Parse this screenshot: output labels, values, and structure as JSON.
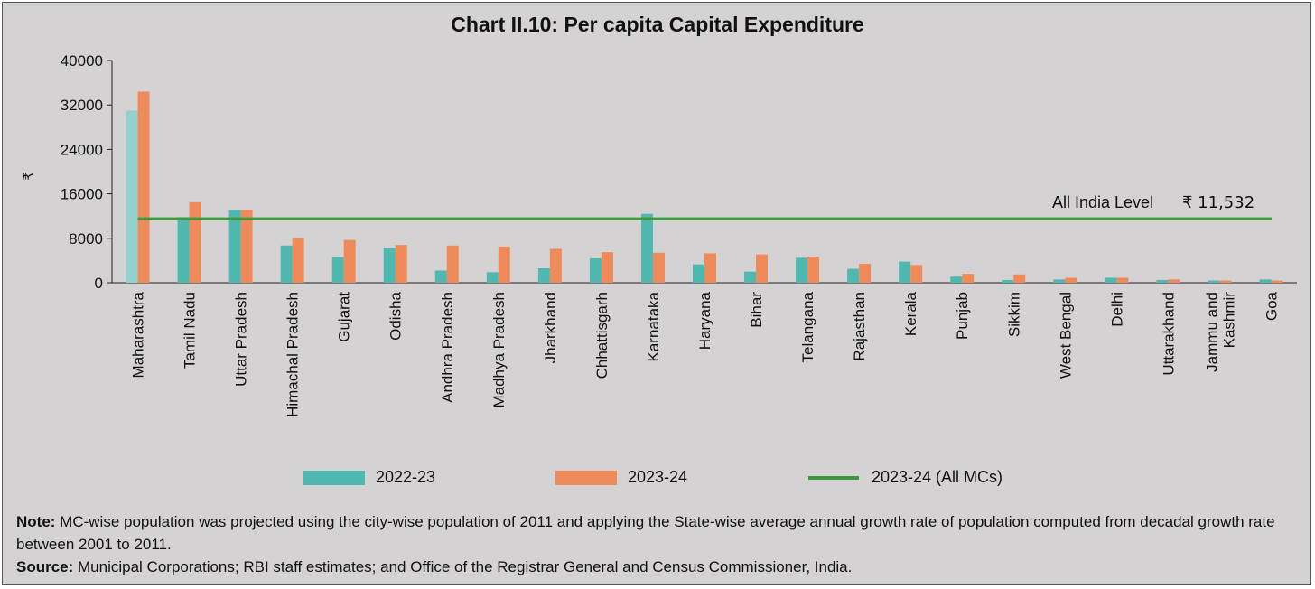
{
  "title": "Chart II.10: Per capita Capital Expenditure",
  "colors": {
    "series_2022_23": "#4fb8b0",
    "series_2023_24": "#ef8b5a",
    "maharashtra_2022_23": "#93d2cc",
    "all_india_line": "#3c9a3c",
    "background": "#d5d2d3"
  },
  "chart_data": {
    "type": "bar",
    "title": "Chart II.10: Per capita Capital Expenditure",
    "ylabel": "₹",
    "xlabel": "",
    "ylim": [
      0,
      40000
    ],
    "yticks": [
      0,
      8000,
      16000,
      24000,
      32000,
      40000
    ],
    "ytick_labels": [
      "0",
      "8000",
      "16000",
      "24000",
      "32000",
      "40000"
    ],
    "categories": [
      "Maharashtra",
      "Tamil Nadu",
      "Uttar Pradesh",
      "Himachal Pradesh",
      "Gujarat",
      "Odisha",
      "Andhra Pradesh",
      "Madhya Pradesh",
      "Jharkhand",
      "Chhattisgarh",
      "Karnataka",
      "Haryana",
      "Bihar",
      "Telangana",
      "Rajasthan",
      "Kerala",
      "Punjab",
      "Sikkim",
      "West Bengal",
      "Delhi",
      "Uttarakhand",
      "Jammu and\nKashmir",
      "Goa"
    ],
    "series": [
      {
        "name": "2022-23",
        "values": [
          31000,
          11800,
          13100,
          6700,
          4600,
          6300,
          2200,
          1900,
          2600,
          4400,
          12400,
          3300,
          2000,
          4500,
          2500,
          3800,
          1100,
          500,
          600,
          900,
          500,
          400,
          600
        ]
      },
      {
        "name": "2023-24",
        "values": [
          34400,
          14500,
          13100,
          8000,
          7700,
          6800,
          6700,
          6500,
          6100,
          5500,
          5400,
          5300,
          5100,
          4700,
          3400,
          3200,
          1600,
          1500,
          900,
          900,
          600,
          400,
          400
        ]
      }
    ],
    "reference_line": {
      "name": "2023-24 (All MCs)",
      "value": 11532,
      "label": "All India Level",
      "value_label": "₹ 11,532"
    },
    "legend_position": "bottom",
    "grid": false
  },
  "legend": [
    {
      "label": "2022-23"
    },
    {
      "label": "2023-24"
    },
    {
      "label": "2023-24 (All MCs)"
    }
  ],
  "notes": {
    "note_heading": "Note:",
    "note_text": " MC-wise population was projected using the city-wise population of 2011 and applying the State-wise average annual growth rate of population computed from decadal growth rate between 2001 to 2011.",
    "source_heading": "Source:",
    "source_text": " Municipal Corporations; RBI staff estimates; and Office of the Registrar General and Census Commissioner, India."
  }
}
